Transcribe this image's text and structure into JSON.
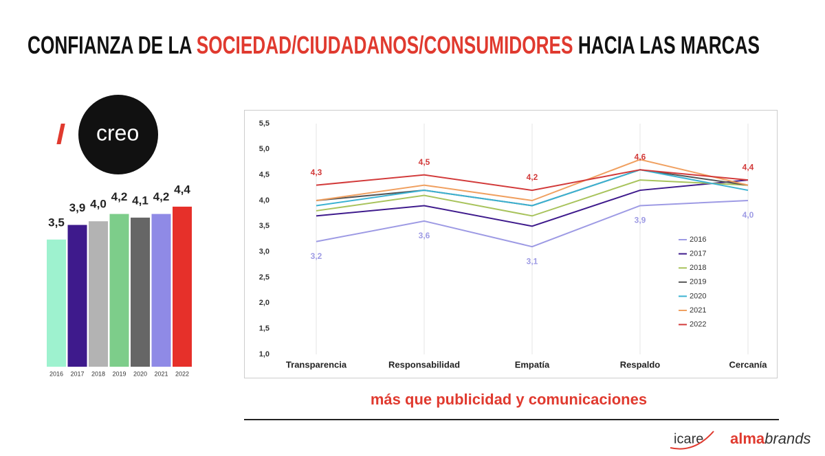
{
  "header": {
    "title_parts": [
      "CONFIANZA DE LA ",
      "SOCIEDAD/CIUDADANOS/CONSUMIDORES",
      " HACIA LAS MARCAS"
    ],
    "logo": "creo"
  },
  "chart_data": [
    {
      "type": "bar",
      "categories": [
        "2016",
        "2017",
        "2018",
        "2019",
        "2020",
        "2021",
        "2022"
      ],
      "values": [
        3.5,
        3.9,
        4.0,
        4.2,
        4.1,
        4.2,
        4.4
      ],
      "value_labels": [
        "3,5",
        "3,9",
        "4,0",
        "4,2",
        "4,1",
        "4,2",
        "4,4"
      ],
      "colors": [
        "#9ef2cf",
        "#3e1a8c",
        "#b3b3b3",
        "#7dcd8a",
        "#666666",
        "#8f8ae6",
        "#e6302a"
      ]
    },
    {
      "type": "line",
      "categories": [
        "Transparencia",
        "Responsabilidad",
        "Empatía",
        "Respaldo",
        "Cercanía"
      ],
      "ylim": [
        1.0,
        5.5
      ],
      "yticks": [
        {
          "value": 1.0,
          "label": "1,0"
        },
        {
          "value": 1.5,
          "label": "1,5"
        },
        {
          "value": 2.0,
          "label": "2,0"
        },
        {
          "value": 2.5,
          "label": "2,5"
        },
        {
          "value": 3.0,
          "label": "3,0"
        },
        {
          "value": 3.5,
          "label": "3,5"
        },
        {
          "value": 4.0,
          "label": "4,0"
        },
        {
          "value": 4.5,
          "label": "4,5"
        },
        {
          "value": 5.0,
          "label": "5,0"
        },
        {
          "value": 5.5,
          "label": "5,5"
        }
      ],
      "grid": true,
      "legend": "lower right",
      "series": [
        {
          "name": "2016",
          "color": "#9d9ae4",
          "values": [
            3.2,
            3.6,
            3.1,
            3.9,
            4.0
          ],
          "value_labels": [
            "3,2",
            "3,6",
            "3,1",
            "3,9",
            "4,0"
          ]
        },
        {
          "name": "2017",
          "color": "#3e1a8c",
          "values": [
            3.7,
            3.9,
            3.5,
            4.2,
            4.4
          ]
        },
        {
          "name": "2018",
          "color": "#a8c35c",
          "values": [
            3.8,
            4.1,
            3.7,
            4.4,
            4.3
          ]
        },
        {
          "name": "2019",
          "color": "#555555",
          "values": [
            4.0,
            4.2,
            3.9,
            4.6,
            4.3
          ]
        },
        {
          "name": "2020",
          "color": "#3bb2d2",
          "values": [
            3.9,
            4.2,
            3.9,
            4.6,
            4.2
          ]
        },
        {
          "name": "2021",
          "color": "#f0a060",
          "values": [
            4.0,
            4.3,
            4.0,
            4.8,
            4.3
          ]
        },
        {
          "name": "2022",
          "color": "#d23a3a",
          "values": [
            4.3,
            4.5,
            4.2,
            4.6,
            4.4
          ],
          "value_labels": [
            "4,3",
            "4,5",
            "4,2",
            "4,6",
            "4,4"
          ]
        }
      ]
    }
  ],
  "footer": {
    "tagline": "más que publicidad y comunicaciones",
    "logo_left": "icare",
    "logo_right_a": "alma",
    "logo_right_b": "brands"
  }
}
